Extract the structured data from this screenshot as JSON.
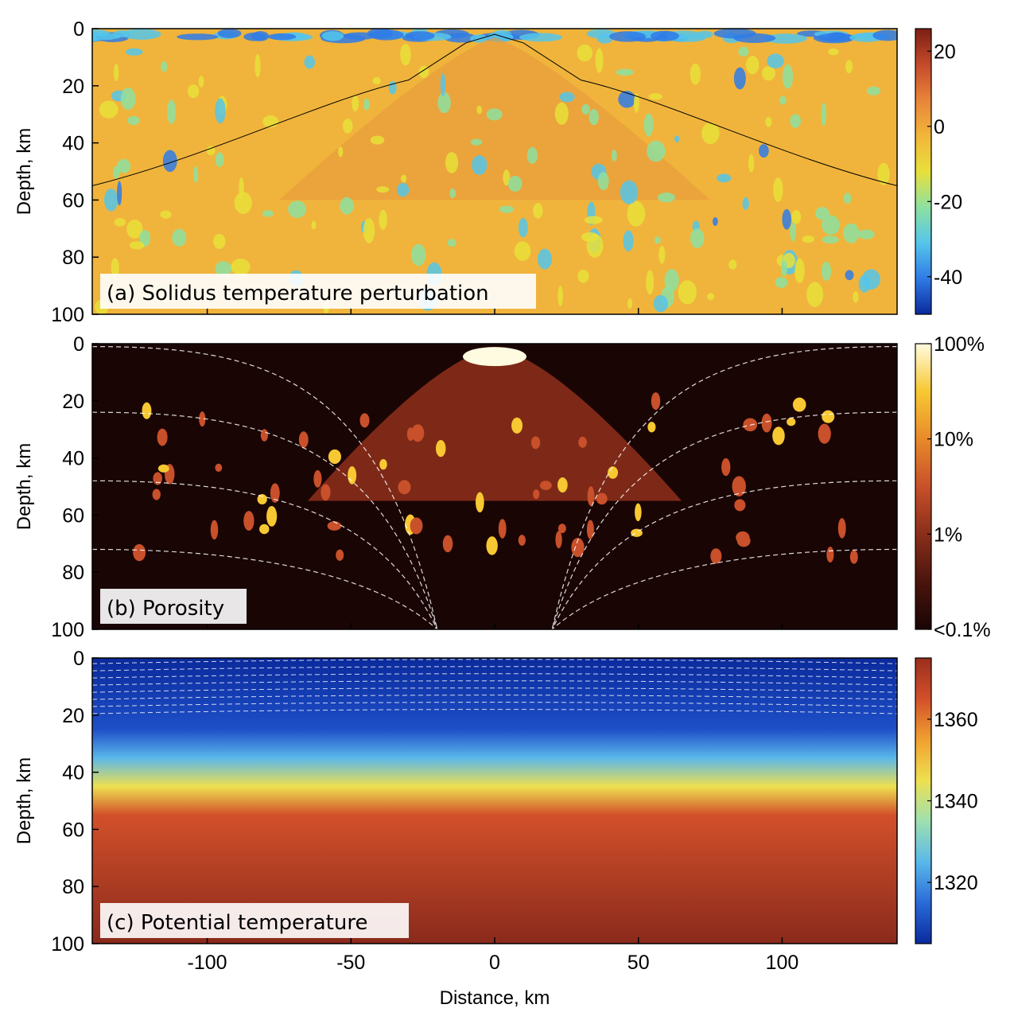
{
  "chart_data": [
    {
      "type": "heatmap",
      "panel_label": "(a) Solidus temperature perturbation",
      "ylabel": "Depth, km",
      "xlabel": "",
      "xlim": [
        -140,
        140
      ],
      "ylim": [
        0,
        100
      ],
      "y_reversed": true,
      "y_ticks": [
        0,
        20,
        40,
        60,
        80,
        100
      ],
      "x_ticks": [
        -100,
        -50,
        0,
        50,
        100
      ],
      "x_tick_labels_shown": false,
      "colorbar": {
        "range": [
          -50,
          26
        ],
        "ticks": [
          20,
          0,
          -20,
          -40
        ],
        "tick_labels": [
          "20",
          "0",
          "-20",
          "-40"
        ],
        "colors": [
          "#0a2a9c",
          "#2f7be6",
          "#55c6ea",
          "#8ee0a0",
          "#e8e03a",
          "#f2b53a",
          "#e8843a",
          "#c44a2a",
          "#7a1f14"
        ]
      },
      "contours": "black solid",
      "background_value": 5
    },
    {
      "type": "heatmap",
      "panel_label": "(b) Porosity",
      "ylabel": "Depth, km",
      "xlabel": "",
      "xlim": [
        -140,
        140
      ],
      "ylim": [
        0,
        100
      ],
      "y_reversed": true,
      "y_ticks": [
        0,
        20,
        40,
        60,
        80,
        100
      ],
      "x_ticks": [
        -100,
        -50,
        0,
        50,
        100
      ],
      "x_tick_labels_shown": false,
      "scale": "log",
      "colorbar": {
        "ticks": [
          "100%",
          "10%",
          "1%",
          "<0.1%"
        ],
        "tick_labels": [
          "100%",
          "10%",
          "1%",
          "<0.1%"
        ],
        "colors": [
          "#1a0505",
          "#4a140c",
          "#8a2e1a",
          "#c8502a",
          "#e88a2a",
          "#f7c832",
          "#fffbe0"
        ]
      },
      "streamlines": "white dashed",
      "background_value": "<0.1%"
    },
    {
      "type": "heatmap",
      "panel_label": "(c) Potential temperature",
      "ylabel": "Depth, km",
      "xlabel": "Distance, km",
      "xlim": [
        -140,
        140
      ],
      "ylim": [
        0,
        100
      ],
      "y_reversed": true,
      "y_ticks": [
        0,
        20,
        40,
        60,
        80,
        100
      ],
      "x_ticks": [
        -100,
        -50,
        0,
        50,
        100
      ],
      "x_tick_labels": [
        "-100",
        "-50",
        "0",
        "50",
        "100"
      ],
      "colorbar": {
        "range": [
          1305,
          1375
        ],
        "ticks": [
          1360,
          1340,
          1320
        ],
        "tick_labels": [
          "1360",
          "1340",
          "1320"
        ],
        "colors": [
          "#0a2a9c",
          "#2a6ad8",
          "#5ab8ea",
          "#9ee0b0",
          "#eee050",
          "#f0a030",
          "#d2502a",
          "#9a2e1e"
        ]
      },
      "contours": "black solid",
      "isotherms": "white dashed"
    }
  ]
}
